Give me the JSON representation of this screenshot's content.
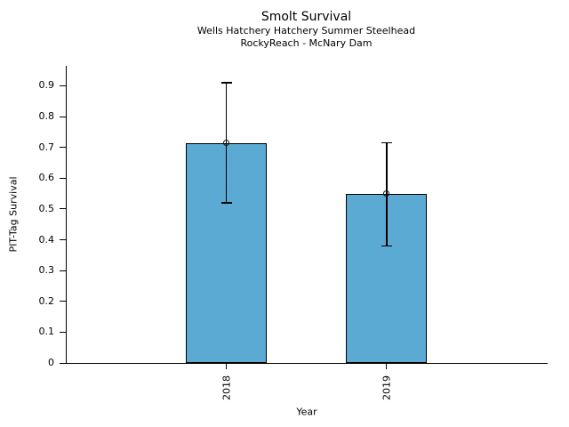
{
  "chart_data": {
    "type": "bar",
    "title": "Smolt Survival",
    "subtitle_line1": "Wells Hatchery Hatchery Summer Steelhead",
    "subtitle_line2": "RockyReach - McNary Dam",
    "xlabel": "Year",
    "ylabel": "PIT-Tag Survival",
    "categories": [
      "2018",
      "2019"
    ],
    "values": [
      0.715,
      0.55
    ],
    "error_low": [
      0.52,
      0.38
    ],
    "error_high": [
      0.91,
      0.715
    ],
    "y_tick_values": [
      0,
      0.1,
      0.2,
      0.3,
      0.4,
      0.5,
      0.6,
      0.7,
      0.8,
      0.9
    ],
    "y_tick_labels": [
      "0",
      "0.1",
      "0.2",
      "0.3",
      "0.4",
      "0.5",
      "0.6",
      "0.7",
      "0.8",
      "0.9"
    ],
    "ylim": [
      0,
      0.965
    ],
    "grid": false,
    "legend": "none",
    "bar_fill_color": "#5baad3",
    "bar_edge_color": "#000000",
    "error_bar_color": "#000000",
    "point_marker": "open-circle",
    "axis_color": "#000000",
    "background_color": "#ffffff"
  }
}
